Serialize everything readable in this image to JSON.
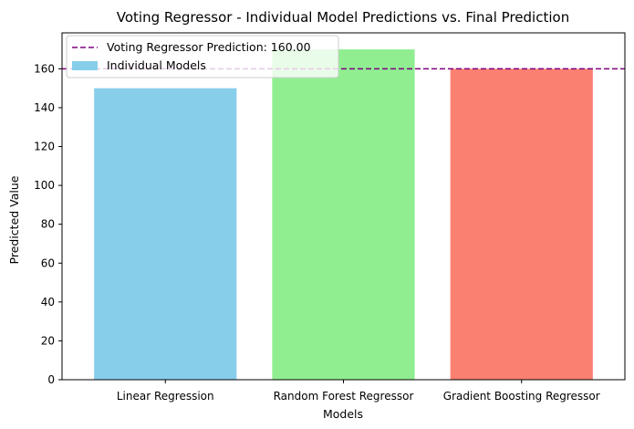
{
  "chart_data": {
    "type": "bar",
    "title": "Voting Regressor - Individual Model Predictions vs. Final Prediction",
    "xlabel": "Models",
    "ylabel": "Predicted Value",
    "categories": [
      "Linear Regression",
      "Random Forest Regressor",
      "Gradient Boosting Regressor"
    ],
    "values": [
      150,
      170,
      160
    ],
    "bar_colors": [
      "#87ceeb",
      "#90ee90",
      "#fa8072"
    ],
    "ylim": [
      0,
      178.5
    ],
    "yticks": [
      0,
      20,
      40,
      60,
      80,
      100,
      120,
      140,
      160
    ],
    "ytick_labels": [
      "0",
      "20",
      "40",
      "60",
      "80",
      "100",
      "120",
      "140",
      "160"
    ],
    "reference_line": {
      "value": 160,
      "color": "#800080",
      "style": "dashed"
    },
    "legend": {
      "placement": "top-left",
      "entries": [
        {
          "label": "Voting Regressor Prediction: 160.00",
          "kind": "dashed-line",
          "color": "#800080"
        },
        {
          "label": "Individual Models",
          "kind": "patch",
          "color": "#87ceeb"
        }
      ]
    },
    "grid": false
  }
}
